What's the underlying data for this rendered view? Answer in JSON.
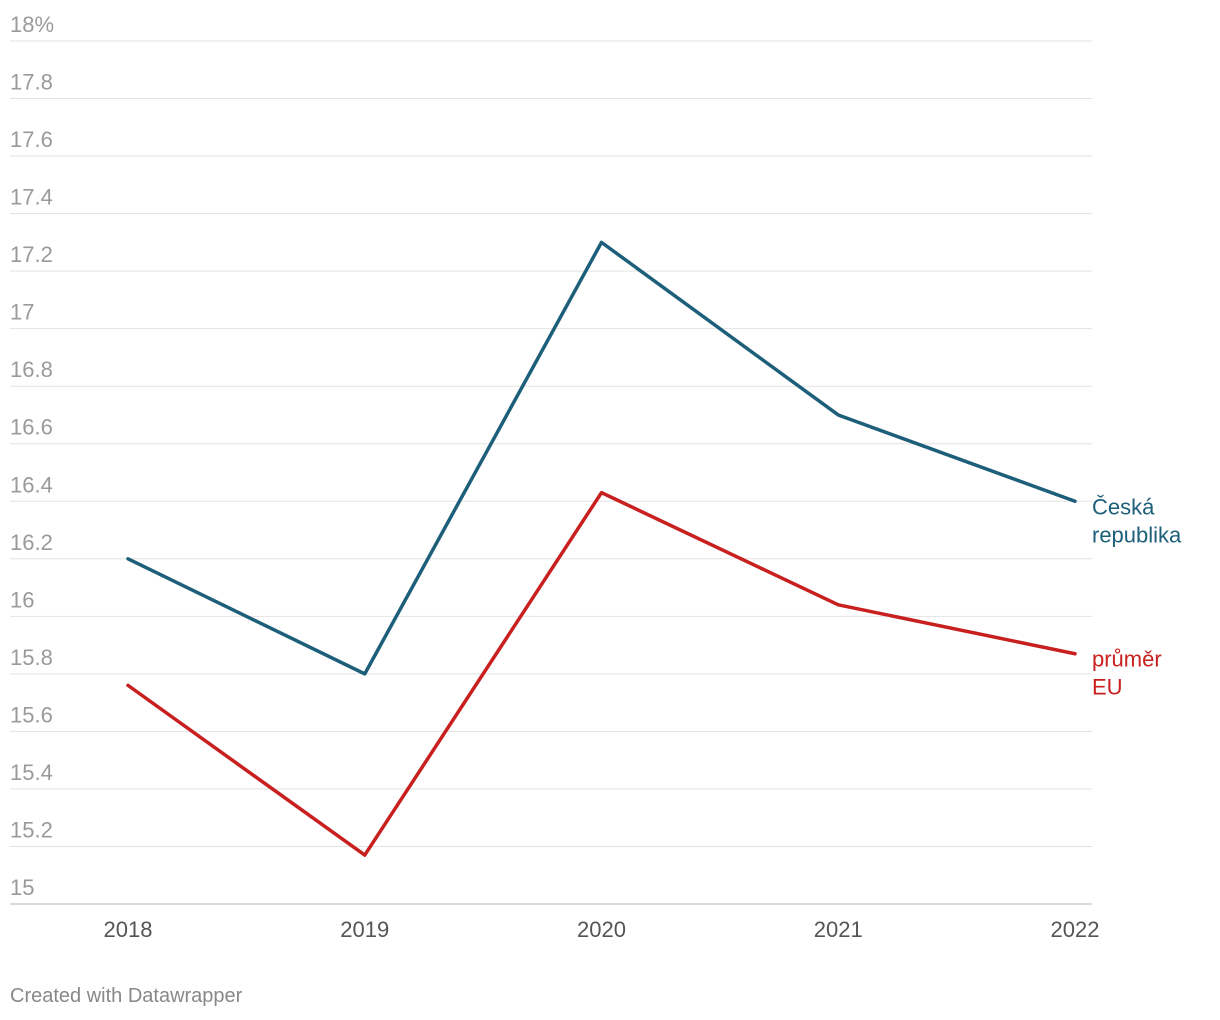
{
  "chart_data": {
    "type": "line",
    "title": "",
    "xlabel": "",
    "ylabel": "",
    "categories": [
      "2018",
      "2019",
      "2020",
      "2021",
      "2022"
    ],
    "y_ticks": [
      "18%",
      "17.8",
      "17.6",
      "17.4",
      "17.2",
      "17",
      "16.8",
      "16.6",
      "16.4",
      "16.2",
      "16",
      "15.8",
      "15.6",
      "15.4",
      "15.2",
      "15"
    ],
    "ylim": [
      15,
      18
    ],
    "grid": true,
    "series": [
      {
        "name": "Česká republika",
        "label_lines": [
          "Česká",
          "republika"
        ],
        "color": "#1d5f7a",
        "values": [
          16.2,
          15.8,
          17.3,
          16.7,
          16.4
        ]
      },
      {
        "name": "průměr EU",
        "label_lines": [
          "průměr",
          "EU"
        ],
        "color": "#c8201f",
        "values": [
          15.76,
          15.17,
          16.43,
          16.04,
          15.87
        ]
      }
    ]
  },
  "footer": {
    "credit": "Created with Datawrapper"
  }
}
